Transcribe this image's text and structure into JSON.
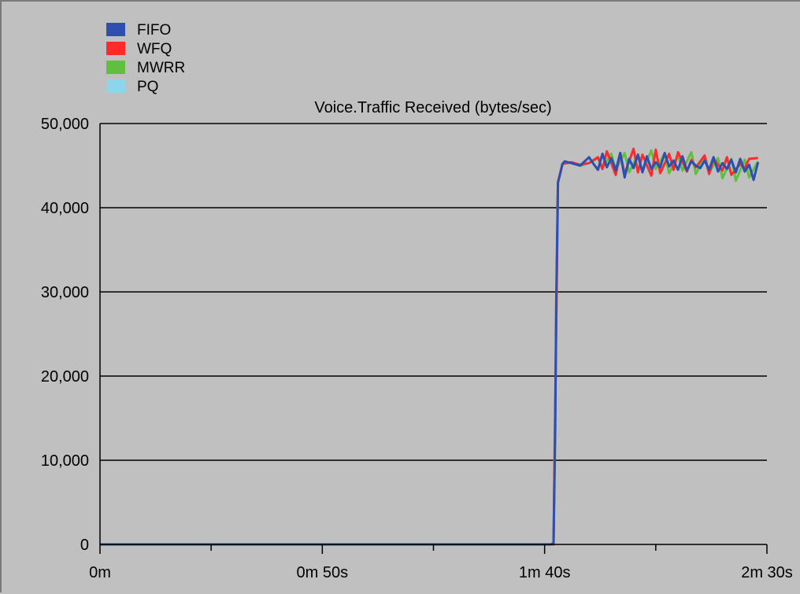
{
  "chart_data": {
    "type": "line",
    "title": "Voice.Traffic Received (bytes/sec)",
    "xlabel": "",
    "ylabel": "",
    "xlim": [
      0,
      150
    ],
    "ylim": [
      0,
      50000
    ],
    "grid": true,
    "legend_position": "top-left",
    "x_ticks": [
      {
        "value": 0,
        "label": "0m"
      },
      {
        "value": 50,
        "label": "0m 50s"
      },
      {
        "value": 100,
        "label": "1m 40s"
      },
      {
        "value": 150,
        "label": "2m 30s"
      }
    ],
    "x_minor_ticks": [
      25,
      75,
      125
    ],
    "y_ticks": [
      {
        "value": 0,
        "label": "0"
      },
      {
        "value": 10000,
        "label": "10,000"
      },
      {
        "value": 20000,
        "label": "20,000"
      },
      {
        "value": 30000,
        "label": "30,000"
      },
      {
        "value": 40000,
        "label": "40,000"
      },
      {
        "value": 50000,
        "label": "50,000"
      }
    ],
    "series": [
      {
        "name": "PQ",
        "color": "#8ed4ea",
        "x": [
          0,
          102,
          103,
          104,
          106,
          108,
          110,
          112,
          113,
          115,
          117,
          118,
          120,
          121,
          123,
          124,
          126,
          127,
          129,
          130,
          132,
          133,
          135,
          136,
          138,
          139,
          141,
          142,
          144,
          145,
          147,
          148
        ],
        "y": [
          0,
          0,
          43000,
          45200,
          45300,
          45000,
          45100,
          45800,
          44900,
          46000,
          45100,
          45600,
          44700,
          45900,
          44800,
          45400,
          44600,
          46000,
          44900,
          45500,
          44400,
          45700,
          44600,
          45300,
          44500,
          45600,
          44300,
          45200,
          44500,
          45000,
          44200,
          45400
        ]
      },
      {
        "name": "MWRR",
        "color": "#5fbf3f",
        "x": [
          0,
          102,
          103,
          104,
          106,
          108,
          110,
          112,
          113,
          115,
          116,
          118,
          119,
          121,
          122,
          124,
          125,
          127,
          128,
          130,
          131,
          133,
          134,
          136,
          137,
          139,
          140,
          142,
          143,
          145,
          146,
          148
        ],
        "y": [
          0,
          0,
          43000,
          45200,
          45400,
          45000,
          45300,
          45900,
          44700,
          46400,
          44500,
          46500,
          44200,
          46300,
          44300,
          46800,
          44600,
          46400,
          44100,
          46200,
          44400,
          46600,
          44000,
          46100,
          44200,
          45900,
          43500,
          45800,
          43200,
          45700,
          43600,
          45500
        ]
      },
      {
        "name": "WFQ",
        "color": "#ff2a2a",
        "x": [
          0,
          102,
          103,
          104,
          106,
          108,
          110,
          112,
          113,
          114,
          116,
          117,
          118,
          120,
          121,
          122,
          124,
          125,
          126,
          128,
          129,
          130,
          132,
          133,
          134,
          136,
          137,
          138,
          140,
          141,
          142,
          144,
          145,
          146,
          148
        ],
        "y": [
          0,
          0,
          43000,
          45200,
          45400,
          45100,
          45300,
          46000,
          44600,
          46700,
          43900,
          46500,
          44000,
          47000,
          44200,
          46300,
          43800,
          46900,
          44100,
          46400,
          44500,
          46600,
          44300,
          45700,
          44800,
          46200,
          44000,
          45800,
          44400,
          46000,
          43900,
          45200,
          44700,
          45800,
          45900
        ]
      },
      {
        "name": "FIFO",
        "color": "#2e4fb0",
        "x": [
          0,
          101.5,
          102,
          102.4,
          102.6,
          103,
          103.5,
          104,
          104.5,
          106,
          108,
          110,
          111,
          112,
          113,
          114,
          115,
          116,
          117,
          118,
          119,
          120,
          121,
          122,
          123,
          124,
          125,
          126,
          127,
          128,
          129,
          130,
          131,
          132,
          133,
          134,
          135,
          136,
          137,
          138,
          139,
          140,
          141,
          142,
          143,
          144,
          145,
          146,
          147,
          148
        ],
        "y": [
          0,
          0,
          200,
          14000,
          28000,
          43000,
          44000,
          45200,
          45500,
          45300,
          45000,
          46000,
          45200,
          44500,
          46400,
          44800,
          45900,
          44400,
          46500,
          43600,
          45800,
          44700,
          46300,
          44200,
          46100,
          44600,
          45400,
          44800,
          46500,
          44900,
          45600,
          44500,
          46100,
          44400,
          45500,
          45000,
          44700,
          45600,
          44500,
          46000,
          44300,
          45300,
          44600,
          45700,
          44200,
          45800,
          44300,
          45100,
          43300,
          45400
        ]
      }
    ]
  },
  "legend_order": [
    "FIFO",
    "WFQ",
    "MWRR",
    "PQ"
  ]
}
